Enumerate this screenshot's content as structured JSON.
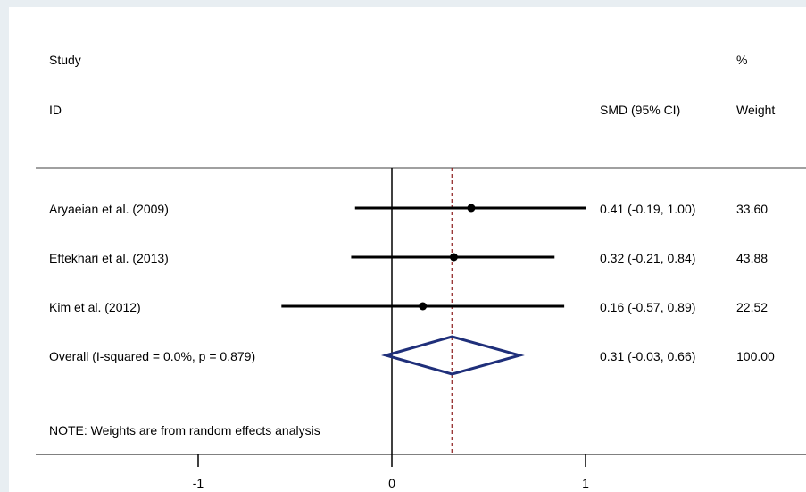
{
  "chart_data": {
    "type": "forest",
    "headers": {
      "study_top": "Study",
      "study_bottom": "ID",
      "effect": "SMD (95% CI)",
      "weight_top": "%",
      "weight_bottom": "Weight"
    },
    "studies": [
      {
        "label": "Aryaeian et al. (2009)",
        "smd": 0.41,
        "lower": -0.19,
        "upper": 1.0,
        "ci_text": "0.41 (-0.19, 1.00)",
        "weight": "33.60"
      },
      {
        "label": "Eftekhari et al. (2013)",
        "smd": 0.32,
        "lower": -0.21,
        "upper": 0.84,
        "ci_text": "0.32 (-0.21, 0.84)",
        "weight": "43.88"
      },
      {
        "label": "Kim et al. (2012)",
        "smd": 0.16,
        "lower": -0.57,
        "upper": 0.89,
        "ci_text": "0.16 (-0.57, 0.89)",
        "weight": "22.52"
      }
    ],
    "overall": {
      "label": "Overall  (I-squared = 0.0%, p = 0.879)",
      "smd": 0.31,
      "lower": -0.03,
      "upper": 0.66,
      "ci_text": "0.31 (-0.03, 0.66)",
      "weight": "100.00"
    },
    "note": "NOTE: Weights are from random effects analysis",
    "x_ticks": [
      -1,
      0,
      1
    ],
    "xlim": [
      -1.0,
      1.0
    ],
    "colors": {
      "diamond": "#1f2f7a",
      "overall_line": "#8b1a1a",
      "ci": "#000000"
    }
  }
}
